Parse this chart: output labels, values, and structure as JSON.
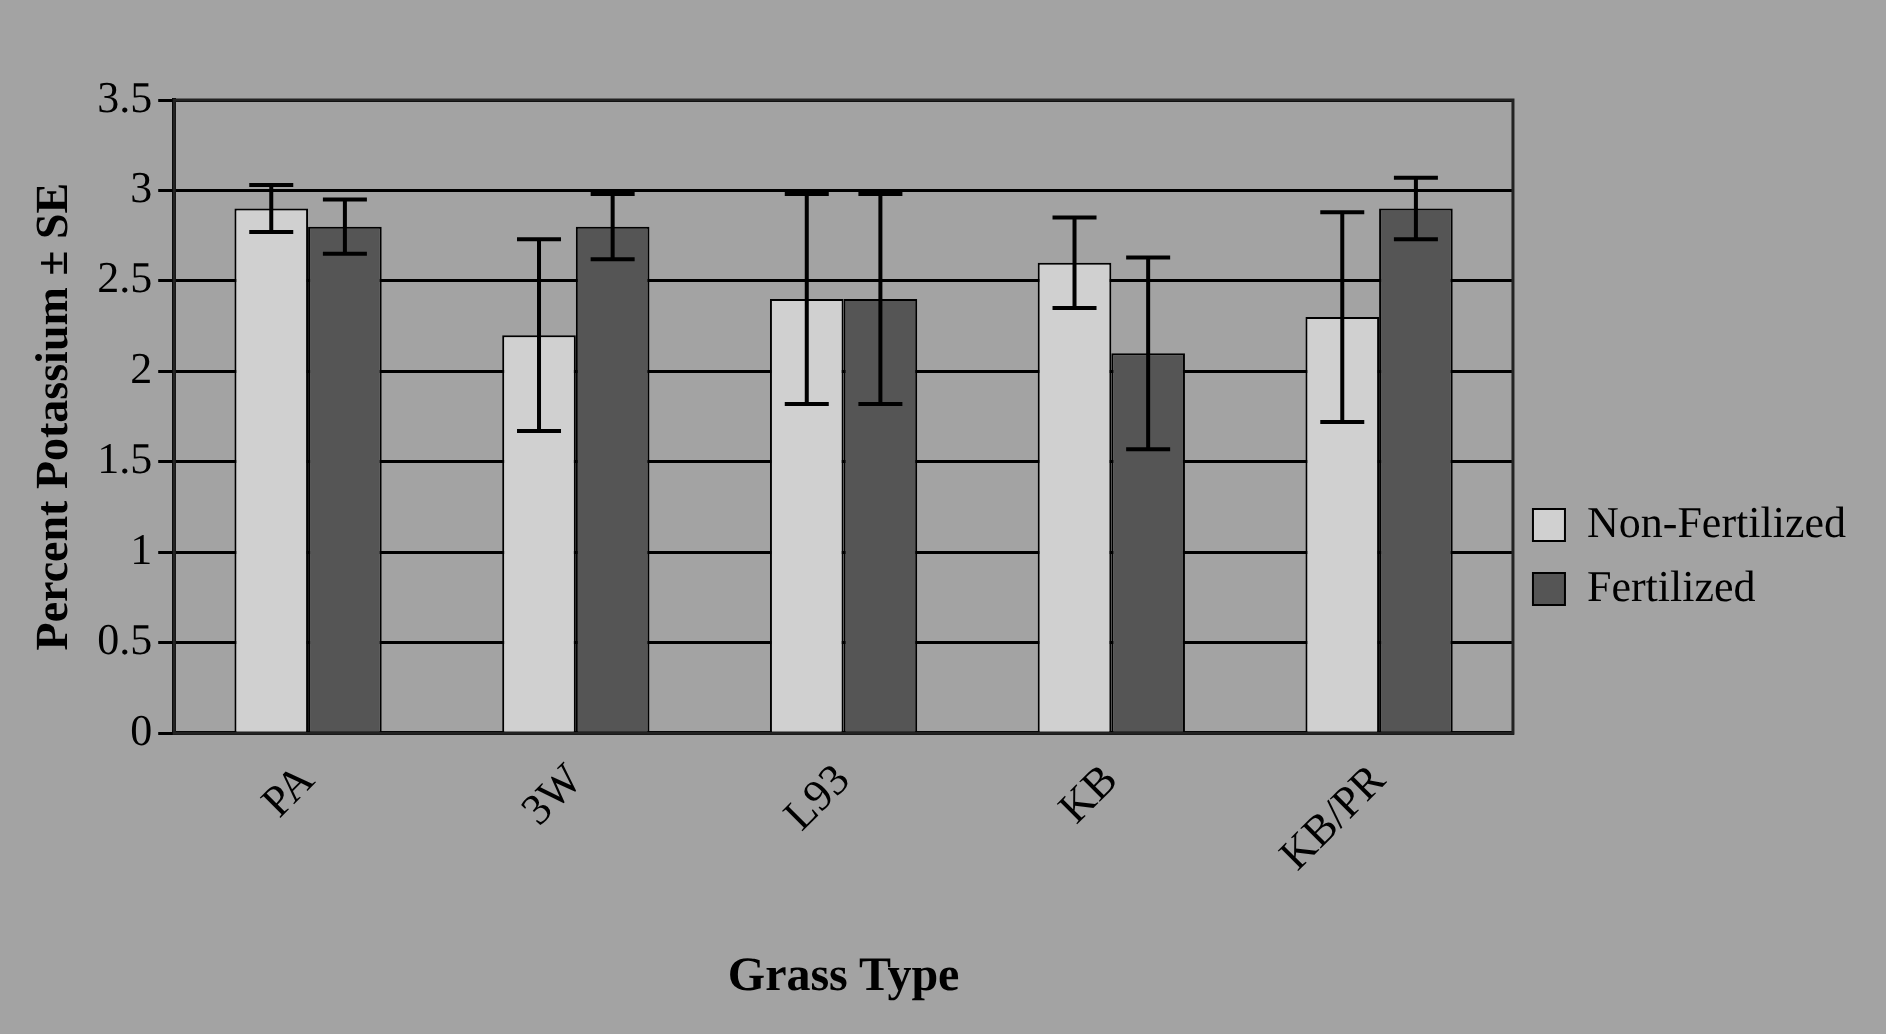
{
  "chart_data": {
    "type": "bar",
    "xlabel": "Grass Type",
    "ylabel": "Percent Potassium ± SE",
    "categories": [
      "PA",
      "3W",
      "L93",
      "KB",
      "KB/PR"
    ],
    "series": [
      {
        "name": "Non-Fertilized",
        "color": "#d0d0d0",
        "values": [
          2.9,
          2.2,
          2.4,
          2.6,
          2.3
        ],
        "errors": [
          0.13,
          0.53,
          0.58,
          0.25,
          0.58
        ]
      },
      {
        "name": "Fertilized",
        "color": "#555555",
        "values": [
          2.8,
          2.8,
          2.4,
          2.1,
          2.9
        ],
        "errors": [
          0.15,
          0.18,
          0.58,
          0.53,
          0.17
        ]
      }
    ],
    "ylim": [
      0,
      3.5
    ],
    "yticks": [
      0,
      0.5,
      1,
      1.5,
      2,
      2.5,
      3,
      3.5
    ],
    "grid": "y",
    "legend": "right"
  }
}
